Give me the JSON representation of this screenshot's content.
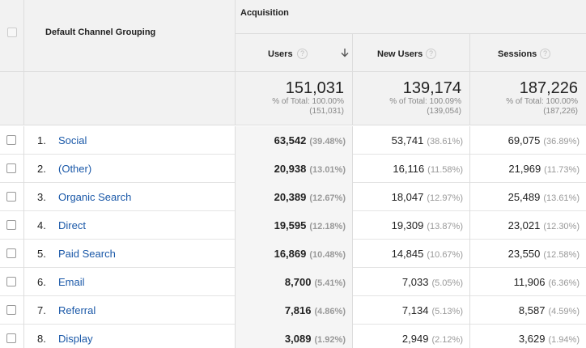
{
  "header": {
    "dimension_label": "Default Channel Grouping",
    "group_label": "Acquisition",
    "columns": [
      {
        "label": "Users",
        "help": "?",
        "sorted": "desc"
      },
      {
        "label": "New Users",
        "help": "?"
      },
      {
        "label": "Sessions",
        "help": "?"
      }
    ]
  },
  "totals": [
    {
      "value": "151,031",
      "pct_line": "% of Total: 100.00%",
      "abs_line": "(151,031)"
    },
    {
      "value": "139,174",
      "pct_line": "% of Total: 100.09%",
      "abs_line": "(139,054)"
    },
    {
      "value": "187,226",
      "pct_line": "% of Total: 100.00%",
      "abs_line": "(187,226)"
    }
  ],
  "rows": [
    {
      "index": "1.",
      "channel": "Social",
      "users": "63,542",
      "users_pct": "(39.48%)",
      "new_users": "53,741",
      "new_users_pct": "(38.61%)",
      "sessions": "69,075",
      "sessions_pct": "(36.89%)"
    },
    {
      "index": "2.",
      "channel": "(Other)",
      "users": "20,938",
      "users_pct": "(13.01%)",
      "new_users": "16,116",
      "new_users_pct": "(11.58%)",
      "sessions": "21,969",
      "sessions_pct": "(11.73%)"
    },
    {
      "index": "3.",
      "channel": "Organic Search",
      "users": "20,389",
      "users_pct": "(12.67%)",
      "new_users": "18,047",
      "new_users_pct": "(12.97%)",
      "sessions": "25,489",
      "sessions_pct": "(13.61%)"
    },
    {
      "index": "4.",
      "channel": "Direct",
      "users": "19,595",
      "users_pct": "(12.18%)",
      "new_users": "19,309",
      "new_users_pct": "(13.87%)",
      "sessions": "23,021",
      "sessions_pct": "(12.30%)"
    },
    {
      "index": "5.",
      "channel": "Paid Search",
      "users": "16,869",
      "users_pct": "(10.48%)",
      "new_users": "14,845",
      "new_users_pct": "(10.67%)",
      "sessions": "23,550",
      "sessions_pct": "(12.58%)"
    },
    {
      "index": "6.",
      "channel": "Email",
      "users": "8,700",
      "users_pct": "(5.41%)",
      "new_users": "7,033",
      "new_users_pct": "(5.05%)",
      "sessions": "11,906",
      "sessions_pct": "(6.36%)"
    },
    {
      "index": "7.",
      "channel": "Referral",
      "users": "7,816",
      "users_pct": "(4.86%)",
      "new_users": "7,134",
      "new_users_pct": "(5.13%)",
      "sessions": "8,587",
      "sessions_pct": "(4.59%)"
    },
    {
      "index": "8.",
      "channel": "Display",
      "users": "3,089",
      "users_pct": "(1.92%)",
      "new_users": "2,949",
      "new_users_pct": "(2.12%)",
      "sessions": "3,629",
      "sessions_pct": "(1.94%)"
    }
  ],
  "colors": {
    "link": "#1a58a8",
    "header_bg": "#f2f2f2",
    "border": "#dddddd"
  },
  "icons": {
    "help": "question-circle-icon",
    "sort": "arrow-down-icon"
  }
}
